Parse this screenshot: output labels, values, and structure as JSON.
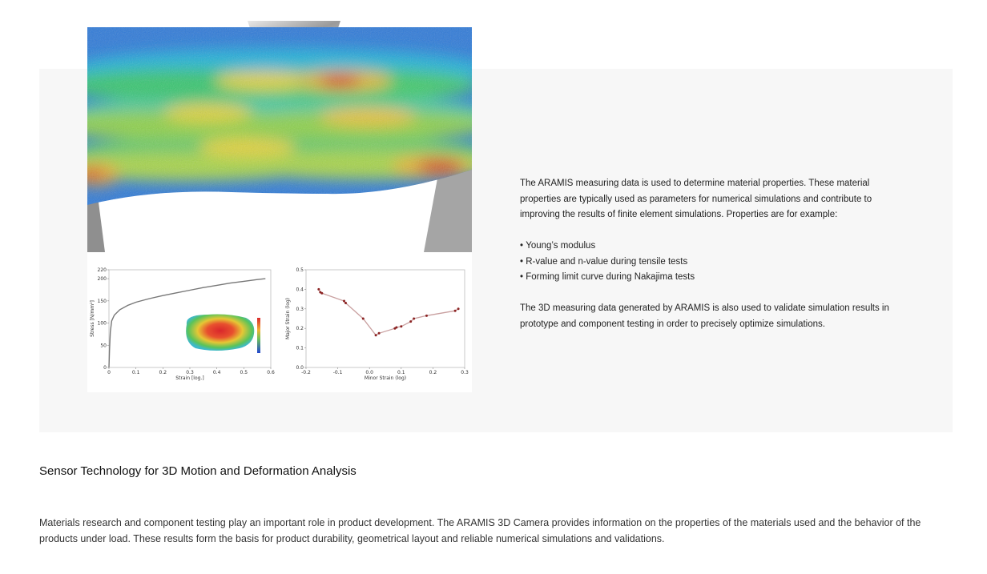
{
  "content": {
    "intro": "The ARAMIS measuring data is used to determine material properties. These material properties are typically used as parameters for numerical simulations and contribute to improving the results of finite element simulations. Properties are for example:",
    "properties": [
      "Young’s modulus",
      "R-value and n-value during tensile tests",
      "Forming limit curve during Nakajima tests"
    ],
    "validation": "The 3D measuring data generated by ARAMIS is also used to validate simulation results in prototype and component testing in order to precisely optimize simulations."
  },
  "section": {
    "heading": "Sensor Technology for 3D Motion and Deformation Analysis",
    "body": "Materials research and component testing play an important role in product development. The ARAMIS 3D Camera provides information on the properties of the materials used and the behavior of the products under load. These results form the basis for product durability, geometrical layout and reliable numerical simulations and validations."
  },
  "colors": {
    "panel_background": "#f7f7f7",
    "curve": "#777777",
    "flc_line": "#c9a0a0",
    "flc_points": "#8b2323"
  },
  "chart_data": [
    {
      "type": "line",
      "xlabel": "Strain [log.]",
      "ylabel": "Stress [N/mm²]",
      "xticks": [
        "0",
        "0.1",
        "0.2",
        "0.3",
        "0.4",
        "0.5",
        "0.6"
      ],
      "yticks": [
        "0",
        "50",
        "100",
        "150",
        "200",
        "220"
      ],
      "xlim": [
        0,
        0.6
      ],
      "ylim": [
        0,
        220
      ],
      "series": [
        {
          "x": [
            0,
            0.002,
            0.005,
            0.01,
            0.02,
            0.04,
            0.07,
            0.1,
            0.15,
            0.2,
            0.25,
            0.3,
            0.35,
            0.4,
            0.45,
            0.5,
            0.55,
            0.58
          ],
          "values": [
            0,
            40,
            80,
            105,
            118,
            130,
            140,
            147,
            155,
            162,
            168,
            174,
            180,
            185,
            190,
            194,
            198,
            200
          ]
        }
      ]
    },
    {
      "type": "scatter",
      "xlabel": "Minor Strain (log)",
      "ylabel": "Major Strain (log)",
      "xticks": [
        "-0.2",
        "-0.1",
        "0.0",
        "0.1",
        "0.2",
        "0.3"
      ],
      "yticks": [
        "0.0",
        "0.1",
        "0.2",
        "0.3",
        "0.4",
        "0.5"
      ],
      "xlim": [
        -0.2,
        0.3
      ],
      "ylim": [
        0,
        0.5
      ],
      "series": [
        {
          "x": [
            -0.16,
            -0.155,
            -0.15,
            -0.08,
            -0.075,
            -0.02,
            0.02,
            0.03,
            0.08,
            0.085,
            0.1,
            0.13,
            0.14,
            0.18,
            0.27,
            0.28
          ],
          "values": [
            0.4,
            0.385,
            0.38,
            0.34,
            0.33,
            0.25,
            0.165,
            0.175,
            0.2,
            0.205,
            0.21,
            0.235,
            0.25,
            0.265,
            0.29,
            0.3
          ]
        }
      ]
    }
  ]
}
